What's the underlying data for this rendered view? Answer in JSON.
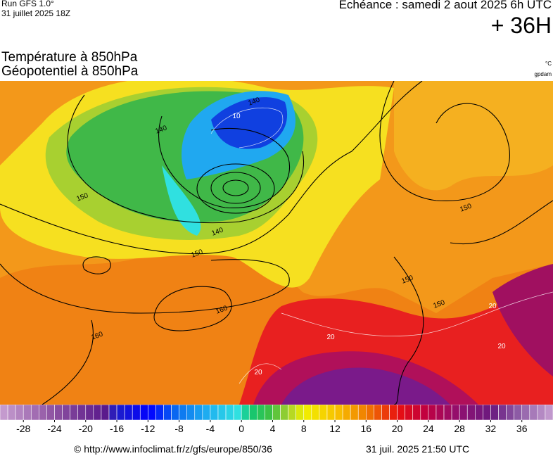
{
  "header": {
    "run": "Run GFS 1.0°",
    "run_date": "31 juillet 2025 18Z",
    "valid": "Echéance : samedi 2 aout 2025 6h UTC",
    "lead": "+ 36H"
  },
  "titles": {
    "line1": "Température à 850hPa",
    "line2": "Géopotentiel à 850hPa",
    "unit1": "°C",
    "unit2": "gpdam"
  },
  "map": {
    "contour_labels": [
      "150",
      "140",
      "140",
      "140",
      "150",
      "160",
      "160",
      "150",
      "150",
      "150"
    ],
    "isotherm_labels": [
      "10",
      "20",
      "20",
      "20",
      "20"
    ]
  },
  "colorbar": {
    "range": [
      -31,
      40
    ],
    "ticks": [
      -28,
      -24,
      -20,
      -16,
      -12,
      -8,
      -4,
      0,
      4,
      8,
      12,
      16,
      20,
      24,
      28,
      32,
      36
    ]
  },
  "footer": {
    "url": "© http://www.infoclimat.fr/z/gfs/europe/850/36",
    "timestamp": "31 juil. 2025 21:50 UTC"
  }
}
